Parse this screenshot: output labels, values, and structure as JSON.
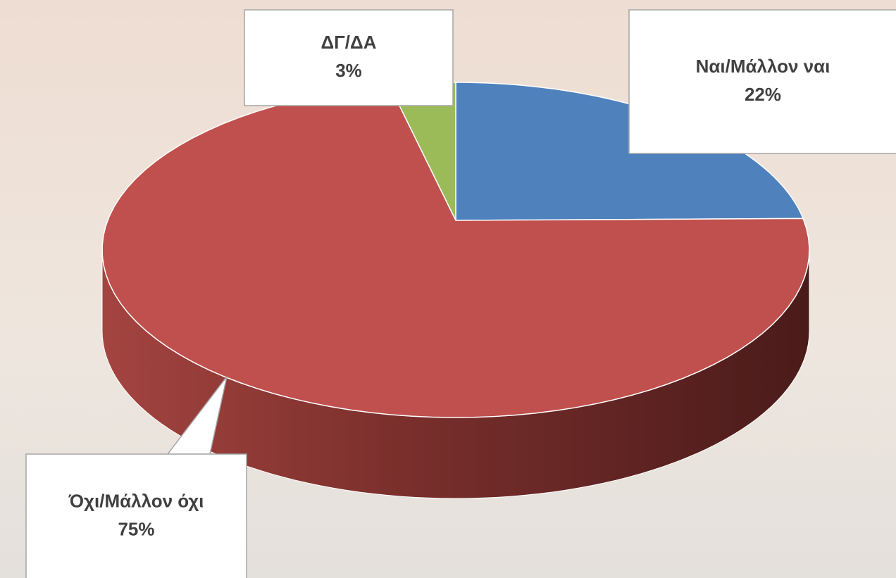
{
  "chart_data": {
    "type": "pie3d",
    "categories": [
      "Ναι/Μάλλον ναι",
      "Όχι/Μάλλον όχι",
      "ΔΓ/ΔΑ"
    ],
    "values": [
      22,
      75,
      3
    ],
    "value_labels": [
      "22%",
      "75%",
      "3%"
    ],
    "colors": [
      "#4f81bd",
      "#c0504d",
      "#9bbb59"
    ]
  }
}
